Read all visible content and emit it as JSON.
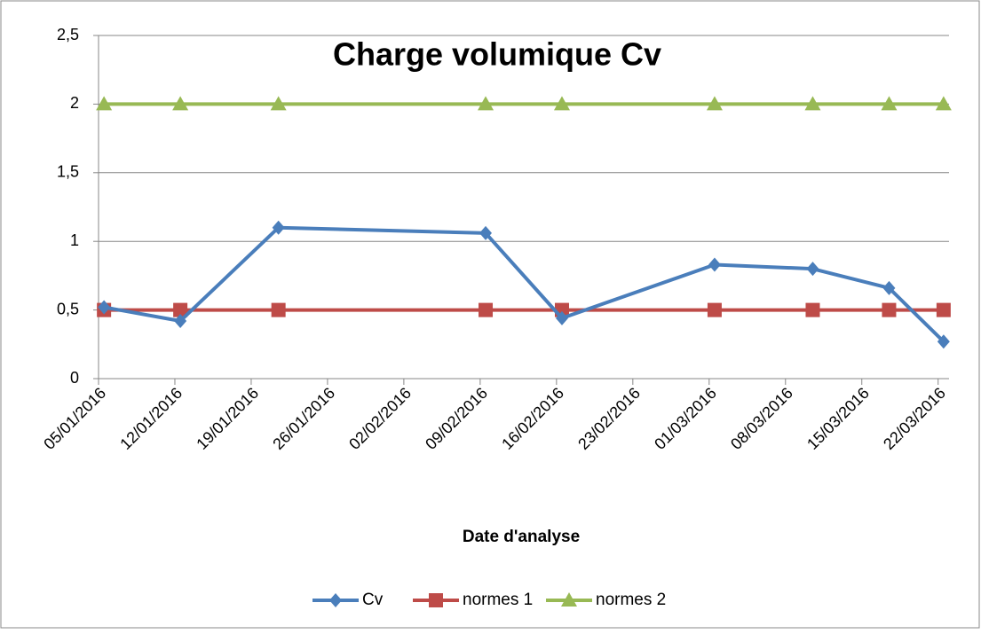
{
  "chart_data": {
    "type": "line",
    "title": "Charge volumique Cv",
    "x_label": "Date d'analyse",
    "x": [
      "05/01/2016",
      "12/01/2016",
      "21/01/2016",
      "09/02/2016",
      "16/02/2016",
      "01/03/2016",
      "10/03/2016",
      "17/03/2016",
      "22/03/2016"
    ],
    "series": [
      {
        "name": "Cv",
        "color": "#4a7ebb",
        "marker": "diamond",
        "values": [
          0.52,
          0.42,
          1.1,
          1.06,
          0.44,
          0.83,
          0.8,
          0.66,
          0.27
        ]
      },
      {
        "name": "normes 1",
        "color": "#be4b48",
        "marker": "square",
        "values": [
          0.5,
          0.5,
          0.5,
          0.5,
          0.5,
          0.5,
          0.5,
          0.5,
          0.5
        ]
      },
      {
        "name": "normes 2",
        "color": "#98b954",
        "marker": "triangle",
        "values": [
          2,
          2,
          2,
          2,
          2,
          2,
          2,
          2,
          2
        ]
      }
    ],
    "xlim": [
      "05/01/2016",
      "23/03/2016"
    ],
    "xticks": [
      "05/01/2016",
      "12/01/2016",
      "19/01/2016",
      "26/01/2016",
      "02/02/2016",
      "09/02/2016",
      "16/02/2016",
      "23/02/2016",
      "01/03/2016",
      "08/03/2016",
      "15/03/2016",
      "22/03/2016"
    ],
    "ylim": [
      0,
      2.5
    ],
    "yticks": [
      0,
      {
        "value": 0.5,
        "label": "0,5"
      },
      1,
      {
        "value": 1.5,
        "label": "1,5"
      },
      2,
      {
        "value": 2.5,
        "label": "2,5"
      }
    ],
    "grid": true,
    "legend": "bottom"
  }
}
